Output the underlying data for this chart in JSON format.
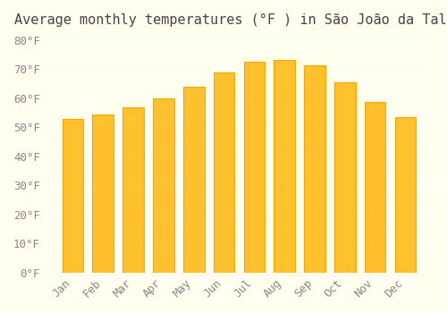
{
  "title": "Average monthly temperatures (°F ) in São João da Talha",
  "months": [
    "Jan",
    "Feb",
    "Mar",
    "Apr",
    "May",
    "Jun",
    "Jul",
    "Aug",
    "Sep",
    "Oct",
    "Nov",
    "Dec"
  ],
  "values": [
    52.7,
    54.5,
    57.0,
    59.9,
    63.9,
    68.9,
    72.5,
    73.2,
    71.2,
    65.5,
    58.6,
    53.4
  ],
  "bar_color_face": "#FFC12E",
  "bar_color_edge": "#FFA500",
  "background_color": "#FFFFF0",
  "grid_color": "#FFFFFF",
  "ytick_labels": [
    "0°F",
    "10°F",
    "20°F",
    "30°F",
    "40°F",
    "50°F",
    "60°F",
    "70°F",
    "80°F"
  ],
  "ytick_values": [
    0,
    10,
    20,
    30,
    40,
    50,
    60,
    70,
    80
  ],
  "ylim": [
    0,
    82
  ],
  "title_fontsize": 11,
  "tick_fontsize": 9,
  "font_family": "monospace"
}
